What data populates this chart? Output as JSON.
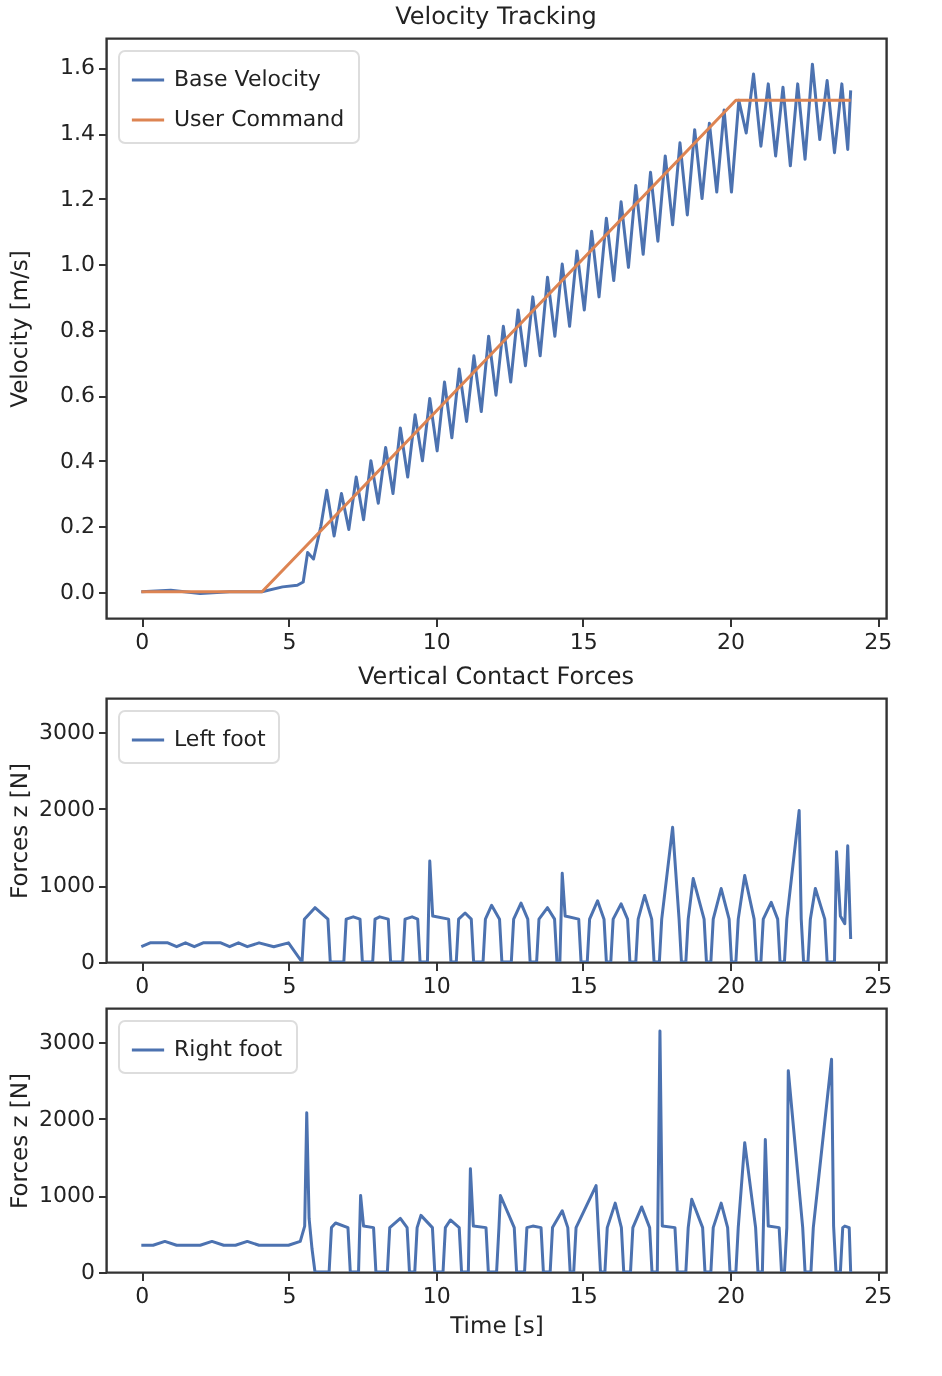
{
  "chart_data": [
    {
      "type": "line",
      "title": "Velocity Tracking",
      "ylabel": "Velocity [m/s]",
      "xlim": [
        -1.2,
        25.3
      ],
      "ylim": [
        -0.08,
        1.69
      ],
      "xticks": [
        0,
        5,
        10,
        15,
        20,
        25
      ],
      "yticks": [
        {
          "value": 0,
          "label": "0.0"
        },
        0.2,
        0.4,
        0.6,
        0.8,
        {
          "value": 1,
          "label": "1.0"
        },
        1.2,
        1.4,
        1.6
      ],
      "grid": false,
      "legend": "top left",
      "series": [
        {
          "name": "Base Velocity",
          "color": "#4c72b0",
          "x": [
            0,
            1,
            2,
            3,
            4.1,
            4.8,
            5.3,
            5.5,
            5.65,
            5.85,
            6.1,
            6.3,
            6.55,
            6.8,
            7.05,
            7.3,
            7.55,
            7.8,
            8.05,
            8.3,
            8.55,
            8.8,
            9.05,
            9.3,
            9.55,
            9.8,
            10.05,
            10.3,
            10.55,
            10.8,
            11.05,
            11.3,
            11.55,
            11.8,
            12.05,
            12.3,
            12.55,
            12.8,
            13.05,
            13.3,
            13.55,
            13.8,
            14.05,
            14.3,
            14.55,
            14.8,
            15.05,
            15.3,
            15.55,
            15.8,
            16.05,
            16.3,
            16.55,
            16.8,
            17.05,
            17.3,
            17.55,
            17.8,
            18.05,
            18.3,
            18.55,
            18.8,
            19.05,
            19.3,
            19.55,
            19.8,
            20.05,
            20.3,
            20.55,
            20.8,
            21.05,
            21.3,
            21.55,
            21.8,
            22.05,
            22.3,
            22.55,
            22.8,
            23.05,
            23.3,
            23.55,
            23.8,
            24.0,
            24.1
          ],
          "values": [
            0,
            0.005,
            -0.005,
            0,
            0,
            0.015,
            0.02,
            0.03,
            0.12,
            0.1,
            0.2,
            0.31,
            0.17,
            0.3,
            0.19,
            0.35,
            0.22,
            0.4,
            0.27,
            0.44,
            0.3,
            0.5,
            0.35,
            0.54,
            0.4,
            0.59,
            0.43,
            0.64,
            0.47,
            0.68,
            0.52,
            0.72,
            0.55,
            0.78,
            0.6,
            0.81,
            0.64,
            0.86,
            0.69,
            0.9,
            0.72,
            0.96,
            0.78,
            1.0,
            0.81,
            1.04,
            0.86,
            1.1,
            0.9,
            1.14,
            0.95,
            1.19,
            0.99,
            1.24,
            1.03,
            1.28,
            1.07,
            1.33,
            1.12,
            1.37,
            1.15,
            1.41,
            1.2,
            1.43,
            1.22,
            1.47,
            1.22,
            1.5,
            1.4,
            1.58,
            1.36,
            1.55,
            1.33,
            1.54,
            1.3,
            1.55,
            1.32,
            1.61,
            1.38,
            1.56,
            1.34,
            1.55,
            1.35,
            1.53
          ]
        },
        {
          "name": "User Command",
          "color": "#dd8452",
          "x": [
            0,
            4.1,
            20.2,
            24.1
          ],
          "values": [
            0,
            0,
            1.5,
            1.5
          ]
        }
      ]
    },
    {
      "type": "line",
      "title": "Vertical Contact Forces",
      "ylabel": "Forces z [N]",
      "xlim": [
        -1.2,
        25.3
      ],
      "ylim": [
        0,
        3450
      ],
      "xticks": [
        0,
        5,
        10,
        15,
        20,
        25
      ],
      "yticks": [
        0,
        1000,
        2000,
        3000
      ],
      "grid": false,
      "legend": "top left",
      "series": [
        {
          "name": "Left foot",
          "color": "#4c72b0",
          "x": [
            0,
            0.3,
            0.6,
            0.9,
            1.2,
            1.5,
            1.8,
            2.1,
            2.4,
            2.7,
            3.0,
            3.3,
            3.6,
            4.0,
            4.5,
            5.0,
            5.46,
            5.54,
            5.9,
            6.34,
            6.42,
            6.88,
            6.96,
            7.2,
            7.43,
            7.51,
            7.86,
            7.94,
            8.1,
            8.39,
            8.47,
            8.88,
            8.96,
            9.2,
            9.39,
            9.47,
            9.72,
            9.8,
            9.9,
            10.44,
            10.52,
            10.7,
            10.78,
            11.0,
            11.21,
            11.29,
            11.61,
            11.69,
            11.9,
            12.17,
            12.25,
            12.57,
            12.65,
            12.9,
            13.13,
            13.21,
            13.43,
            13.51,
            13.8,
            14.04,
            14.12,
            14.22,
            14.3,
            14.4,
            14.86,
            14.94,
            15.15,
            15.23,
            15.5,
            15.72,
            15.8,
            15.95,
            16.03,
            16.3,
            16.52,
            16.6,
            16.8,
            16.88,
            17.1,
            17.34,
            17.42,
            17.6,
            17.68,
            18.05,
            18.27,
            18.35,
            18.5,
            18.58,
            18.75,
            19.12,
            19.2,
            19.35,
            19.43,
            19.7,
            19.97,
            20.05,
            20.2,
            20.28,
            20.5,
            20.82,
            20.9,
            21.05,
            21.13,
            21.4,
            21.62,
            21.7,
            21.85,
            21.93,
            22.35,
            22.42,
            22.5,
            22.65,
            22.73,
            22.9,
            23.22,
            23.3,
            23.55,
            23.62,
            23.75,
            23.9,
            24.0,
            24.1
          ],
          "values": [
            200,
            250,
            250,
            250,
            200,
            250,
            200,
            250,
            250,
            250,
            200,
            250,
            200,
            250,
            200,
            250,
            0,
            560,
            710,
            560,
            0,
            0,
            560,
            590,
            560,
            0,
            0,
            560,
            590,
            560,
            0,
            0,
            560,
            590,
            560,
            0,
            0,
            1320,
            600,
            560,
            0,
            0,
            560,
            640,
            560,
            0,
            0,
            560,
            740,
            560,
            0,
            0,
            560,
            770,
            560,
            0,
            0,
            560,
            710,
            560,
            0,
            0,
            1160,
            600,
            560,
            0,
            0,
            560,
            800,
            560,
            0,
            0,
            560,
            760,
            560,
            0,
            0,
            560,
            870,
            560,
            0,
            0,
            560,
            1760,
            560,
            0,
            0,
            560,
            1090,
            560,
            0,
            0,
            560,
            960,
            560,
            0,
            0,
            560,
            1130,
            560,
            0,
            0,
            560,
            780,
            560,
            0,
            0,
            560,
            1980,
            560,
            0,
            0,
            560,
            960,
            560,
            0,
            0,
            1440,
            600,
            500,
            1520,
            300
          ]
        }
      ]
    },
    {
      "type": "line",
      "xlabel": "Time [s]",
      "ylabel": "Forces z [N]",
      "xlim": [
        -1.2,
        25.3
      ],
      "ylim": [
        0,
        3450
      ],
      "xticks": [
        0,
        5,
        10,
        15,
        20,
        25
      ],
      "yticks": [
        0,
        1000,
        2000,
        3000
      ],
      "grid": false,
      "legend": "top left",
      "series": [
        {
          "name": "Right foot",
          "color": "#4c72b0",
          "x": [
            0,
            0.4,
            0.8,
            1.2,
            1.6,
            2.0,
            2.4,
            2.8,
            3.2,
            3.6,
            4.0,
            4.5,
            5.0,
            5.4,
            5.55,
            5.62,
            5.7,
            5.8,
            5.9,
            6.38,
            6.46,
            6.6,
            7.02,
            7.1,
            7.38,
            7.45,
            7.55,
            7.89,
            7.97,
            8.36,
            8.44,
            8.8,
            9.03,
            9.11,
            9.29,
            9.37,
            9.5,
            9.89,
            9.97,
            10.25,
            10.33,
            10.5,
            10.8,
            10.88,
            11.11,
            11.18,
            11.28,
            11.71,
            11.79,
            12.07,
            12.15,
            12.2,
            12.67,
            12.75,
            13.02,
            13.1,
            13.3,
            13.58,
            13.66,
            13.89,
            13.97,
            14.3,
            14.49,
            14.57,
            14.69,
            14.77,
            15.45,
            15.52,
            15.6,
            15.75,
            15.83,
            16.1,
            16.31,
            16.39,
            16.62,
            16.7,
            17.0,
            17.27,
            17.35,
            17.53,
            17.62,
            17.7,
            18.13,
            18.21,
            18.5,
            18.58,
            18.7,
            19.07,
            19.15,
            19.35,
            19.43,
            19.7,
            19.92,
            20.0,
            20.2,
            20.28,
            20.5,
            20.87,
            20.95,
            21.1,
            21.2,
            21.3,
            21.67,
            21.75,
            21.85,
            21.93,
            21.98,
            22.47,
            22.55,
            22.75,
            22.83,
            23.45,
            23.52,
            23.6,
            23.75,
            23.83,
            23.9,
            24.05,
            24.1
          ],
          "values": [
            350,
            350,
            400,
            350,
            350,
            350,
            400,
            350,
            350,
            400,
            350,
            350,
            350,
            400,
            600,
            2080,
            700,
            300,
            0,
            0,
            580,
            640,
            580,
            0,
            0,
            1000,
            600,
            580,
            0,
            0,
            580,
            700,
            580,
            0,
            0,
            580,
            740,
            580,
            0,
            0,
            580,
            680,
            580,
            0,
            0,
            1350,
            600,
            580,
            0,
            0,
            580,
            1000,
            580,
            0,
            0,
            580,
            600,
            580,
            0,
            0,
            580,
            800,
            580,
            0,
            0,
            580,
            1130,
            600,
            0,
            0,
            580,
            900,
            580,
            0,
            0,
            580,
            850,
            580,
            0,
            0,
            3150,
            600,
            580,
            0,
            0,
            580,
            950,
            580,
            0,
            0,
            580,
            900,
            580,
            0,
            0,
            580,
            1690,
            580,
            0,
            0,
            1730,
            600,
            580,
            0,
            0,
            580,
            2630,
            580,
            0,
            0,
            580,
            2780,
            600,
            0,
            0,
            580,
            600,
            580,
            0
          ]
        }
      ]
    }
  ]
}
